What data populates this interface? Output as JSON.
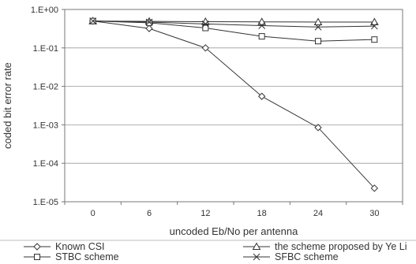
{
  "chart_data": {
    "type": "line",
    "title": "",
    "xlabel": "uncoded Eb/No per antenna",
    "ylabel": "coded bit error rate",
    "x": [
      0,
      6,
      12,
      18,
      24,
      30
    ],
    "x_tick_labels": [
      "0",
      "6",
      "12",
      "18",
      "24",
      "30"
    ],
    "yscale": "log",
    "ylim": [
      1e-05,
      1
    ],
    "y_tick_labels": [
      "1.E+00",
      "1.E-01",
      "1.E-02",
      "1.E-03",
      "1.E-04",
      "1.E-05"
    ],
    "grid": "horizontal",
    "legend_position": "bottom",
    "series": [
      {
        "name": "Known CSI",
        "marker": "diamond",
        "values": [
          0.5,
          0.32,
          0.1,
          0.0055,
          0.00085,
          2.25e-05
        ]
      },
      {
        "name": "the scheme proposed by Ye Li",
        "marker": "triangle",
        "values": [
          0.5,
          0.49,
          0.48,
          0.475,
          0.47,
          0.47
        ]
      },
      {
        "name": "STBC scheme",
        "marker": "square",
        "values": [
          0.5,
          0.45,
          0.33,
          0.2,
          0.15,
          0.165
        ]
      },
      {
        "name": "SFBC scheme",
        "marker": "x",
        "values": [
          0.5,
          0.47,
          0.42,
          0.38,
          0.35,
          0.37
        ]
      }
    ]
  }
}
